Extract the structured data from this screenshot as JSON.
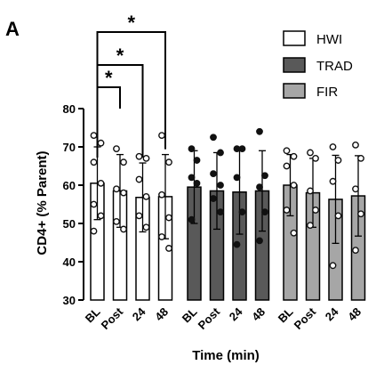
{
  "panel_label": "A",
  "significance_marker": "*",
  "chart_data": {
    "type": "bar",
    "ylabel": "CD4+ (% Parent)",
    "xlabel": "Time (min)",
    "ylim": [
      30,
      80
    ],
    "yticks": [
      30,
      40,
      50,
      60,
      70,
      80
    ],
    "categories": [
      "BL",
      "Post",
      "24",
      "48"
    ],
    "grid": false,
    "legend_position": "top-right",
    "series": [
      {
        "name": "HWI",
        "color": "#ffffff",
        "marker": "hollow-circle",
        "means": [
          60.5,
          58.5,
          56.8,
          57.0
        ],
        "errors": [
          9.5,
          9.5,
          9.0,
          11.0
        ],
        "points": [
          [
            73.0,
            71.0,
            66.0,
            60.5,
            55.0,
            52.0,
            48.0
          ],
          [
            69.5,
            66.0,
            59.0,
            58.0,
            50.5,
            48.5
          ],
          [
            67.5,
            67.0,
            61.5,
            57.0,
            52.0,
            49.0
          ],
          [
            73.0,
            66.0,
            57.5,
            51.5,
            46.5,
            43.5
          ]
        ]
      },
      {
        "name": "TRAD",
        "color": "#595959",
        "marker": "filled-circle",
        "means": [
          59.5,
          58.5,
          58.2,
          58.5
        ],
        "errors": [
          9.5,
          10.0,
          11.0,
          10.5
        ],
        "points": [
          [
            69.5,
            66.5,
            62.0,
            60.5,
            51.0
          ],
          [
            72.5,
            68.5,
            63.0,
            60.0,
            56.5,
            53.0
          ],
          [
            69.5,
            69.5,
            62.0,
            53.0,
            44.5
          ],
          [
            74.0,
            62.5,
            59.5,
            53.0,
            45.5
          ]
        ]
      },
      {
        "name": "FIR",
        "color": "#a6a6a6",
        "marker": "hollow-circle",
        "means": [
          60.0,
          58.0,
          56.3,
          57.2
        ],
        "errors": [
          8.0,
          9.0,
          11.5,
          10.5
        ],
        "points": [
          [
            69.0,
            67.5,
            65.0,
            60.0,
            53.5,
            47.5
          ],
          [
            68.5,
            67.0,
            58.5,
            53.5,
            49.5
          ],
          [
            70.0,
            66.5,
            61.0,
            52.0,
            39.0
          ],
          [
            70.5,
            67.0,
            59.0,
            52.5,
            43.0
          ]
        ]
      }
    ],
    "comparisons": [
      {
        "from": "BL",
        "to": "Post",
        "label": "*"
      },
      {
        "from": "BL",
        "to": "24",
        "label": "*"
      },
      {
        "from": "BL",
        "to": "48",
        "label": "*"
      }
    ]
  }
}
